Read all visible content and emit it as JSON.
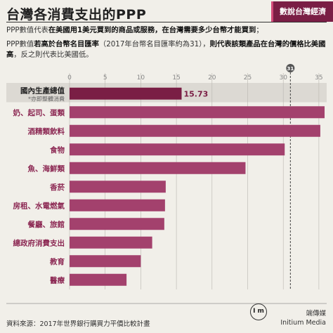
{
  "header": {
    "title": "台灣各消費支出的PPP",
    "badge": "數說台灣經濟"
  },
  "description": {
    "line1_a": "PPP數值代表",
    "line1_b": "在美國用1美元買到的商品或服務，在台灣需要多少台幣才能買到",
    "line1_c": "；",
    "line2_a": "PPP數值",
    "line2_b": "若高於台幣名目匯率",
    "line2_c": "（2017年台幣名目匯率約為31），",
    "line2_d": "則代表該類產品在台灣的價格比美國高",
    "line2_e": "，反之則代表比美國低。"
  },
  "chart_data": {
    "type": "bar",
    "orientation": "horizontal",
    "categories": [
      "國內生產總值",
      "奶、起司、蛋類",
      "酒精類飲料",
      "食物",
      "魚、海鮮類",
      "香菸",
      "房租、水電燃氣",
      "餐廳、旅館",
      "總政府消費支出",
      "教育",
      "醫療"
    ],
    "highlight_sublabel": "*亦即整體消費",
    "values": [
      15.73,
      35.8,
      35.2,
      30.2,
      24.7,
      13.5,
      13.4,
      13.3,
      11.6,
      10.0,
      8.0
    ],
    "value_labels": [
      "15.73",
      "",
      "",
      "",
      "",
      "",
      "",
      "",
      "",
      "",
      ""
    ],
    "xlim": [
      0,
      37
    ],
    "xticks": [
      "0",
      "5",
      "10",
      "15",
      "20",
      "25",
      "30",
      "35"
    ],
    "reference_line": {
      "value": 31,
      "label": "31"
    },
    "colors": {
      "bar": "#a3416d",
      "highlight_bar": "#7a1e45",
      "label": "#8c2853",
      "highlight_band": "#dcd9d3"
    }
  },
  "footer": {
    "source": "資料來源：2017年世界銀行購買力平價比較計畫",
    "brand_cn": "端傳媒",
    "brand_en": "Initium Media",
    "logo_text": "I m"
  }
}
